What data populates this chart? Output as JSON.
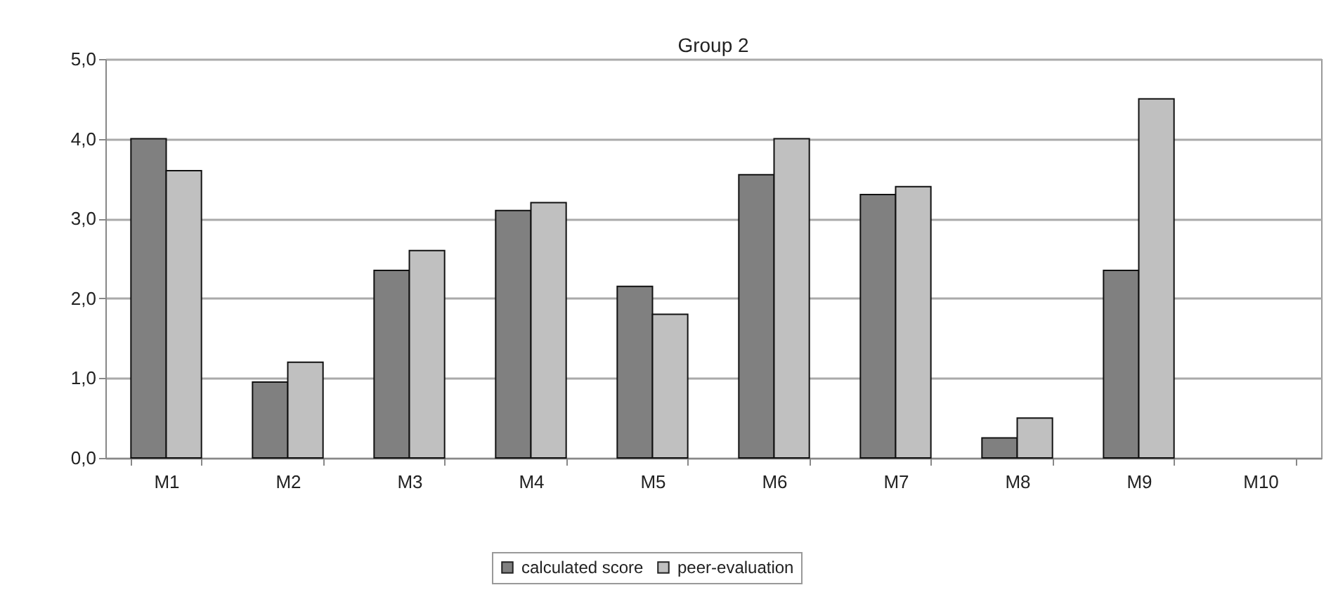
{
  "chart_data": {
    "type": "bar",
    "title": "Group 2",
    "categories": [
      "M1",
      "M2",
      "M3",
      "M4",
      "M5",
      "M6",
      "M7",
      "M8",
      "M9",
      "M10"
    ],
    "series": [
      {
        "name": "calculated score",
        "color": "#808080",
        "values": [
          4.0,
          0.95,
          2.35,
          3.1,
          2.15,
          3.55,
          3.3,
          0.25,
          2.35,
          null
        ]
      },
      {
        "name": "peer-evaluation",
        "color": "#c0c0c0",
        "values": [
          3.6,
          1.2,
          2.6,
          3.2,
          1.8,
          4.0,
          3.4,
          0.5,
          4.5,
          null
        ]
      }
    ],
    "ylim": [
      0,
      5
    ],
    "yticks": [
      {
        "value": 0,
        "label": "0,0"
      },
      {
        "value": 1,
        "label": "1,0"
      },
      {
        "value": 2,
        "label": "2,0"
      },
      {
        "value": 3,
        "label": "3,0"
      },
      {
        "value": 4,
        "label": "4,0"
      },
      {
        "value": 5,
        "label": "5,0"
      }
    ],
    "grid": "y",
    "legend": "bottom"
  }
}
